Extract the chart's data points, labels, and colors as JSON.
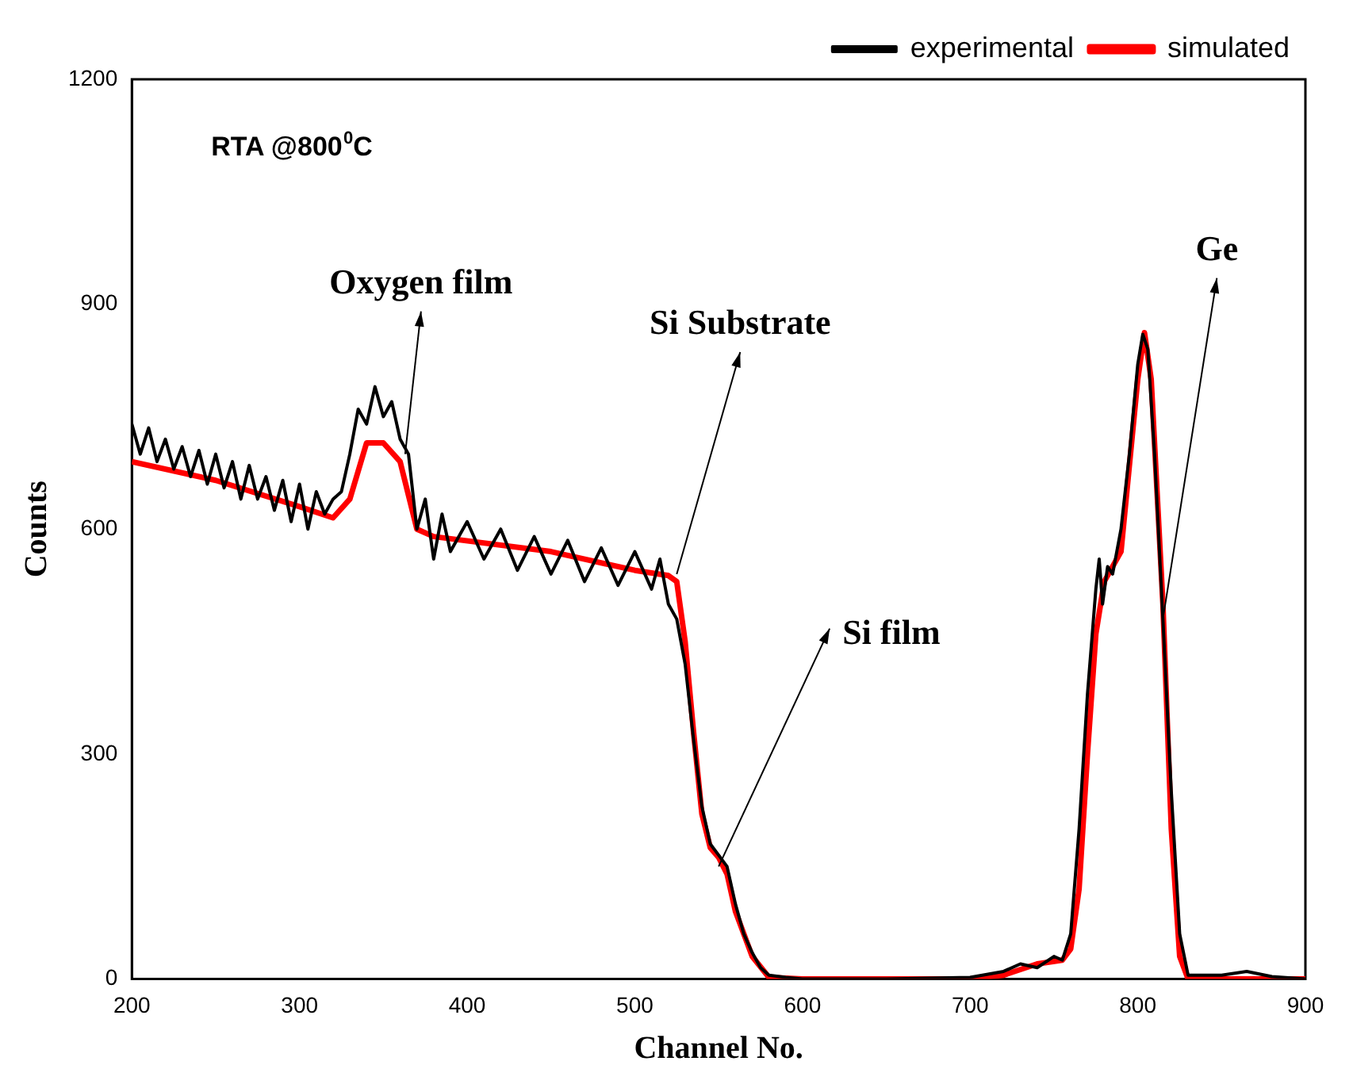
{
  "chart_data": {
    "type": "line",
    "xlabel": "Channel No.",
    "ylabel": "Counts",
    "xlim": [
      200,
      900
    ],
    "ylim": [
      0,
      1200
    ],
    "xticks": [
      200,
      300,
      400,
      500,
      600,
      700,
      800,
      900
    ],
    "yticks": [
      0,
      300,
      600,
      900,
      1200
    ],
    "grid": false,
    "legend": "top right",
    "marker": "none",
    "line_style": "solid",
    "annotations": [
      "RTA @800$^{0}$C",
      {
        "text": "Oxygen film",
        "x": 363,
        "y": 700
      },
      {
        "text": "Si Substrate",
        "x": 525,
        "y": 540
      },
      {
        "text": "Si film",
        "x": 550,
        "y": 150
      },
      {
        "text": "Ge",
        "x": 815,
        "y": 480
      }
    ],
    "series": [
      {
        "name": "experimental",
        "color": "#000000",
        "x": [
          200,
          205,
          210,
          215,
          220,
          225,
          230,
          235,
          240,
          245,
          250,
          255,
          260,
          265,
          270,
          275,
          280,
          285,
          290,
          295,
          300,
          305,
          310,
          315,
          320,
          325,
          330,
          335,
          340,
          345,
          350,
          355,
          360,
          365,
          370,
          375,
          380,
          385,
          390,
          400,
          410,
          420,
          430,
          440,
          450,
          460,
          470,
          480,
          490,
          500,
          510,
          515,
          520,
          525,
          530,
          535,
          540,
          545,
          550,
          555,
          560,
          565,
          570,
          575,
          580,
          590,
          600,
          650,
          700,
          720,
          730,
          740,
          750,
          755,
          760,
          765,
          770,
          775,
          777,
          779,
          782,
          785,
          790,
          795,
          800,
          803,
          806,
          810,
          815,
          820,
          825,
          830,
          850,
          865,
          880,
          900
        ],
        "values": [
          740,
          700,
          735,
          690,
          720,
          680,
          710,
          670,
          705,
          660,
          700,
          655,
          690,
          640,
          685,
          640,
          670,
          625,
          665,
          610,
          660,
          600,
          650,
          620,
          640,
          650,
          700,
          760,
          740,
          790,
          750,
          770,
          720,
          700,
          600,
          640,
          560,
          620,
          570,
          610,
          560,
          600,
          545,
          590,
          540,
          585,
          530,
          575,
          525,
          570,
          520,
          560,
          500,
          480,
          420,
          320,
          230,
          180,
          165,
          150,
          100,
          60,
          35,
          15,
          5,
          2,
          0,
          0,
          2,
          10,
          20,
          15,
          30,
          25,
          60,
          200,
          380,
          520,
          560,
          500,
          550,
          540,
          600,
          700,
          820,
          860,
          840,
          700,
          480,
          250,
          60,
          5,
          5,
          10,
          3,
          0
        ]
      },
      {
        "name": "simulated",
        "color": "#ff0000",
        "x": [
          200,
          250,
          300,
          320,
          330,
          340,
          350,
          360,
          370,
          380,
          450,
          500,
          520,
          525,
          530,
          535,
          540,
          545,
          550,
          555,
          560,
          570,
          580,
          600,
          700,
          720,
          740,
          755,
          760,
          765,
          770,
          775,
          780,
          790,
          800,
          804,
          808,
          815,
          820,
          825,
          830,
          900
        ],
        "values": [
          690,
          665,
          630,
          615,
          640,
          715,
          715,
          690,
          600,
          590,
          570,
          545,
          538,
          530,
          450,
          330,
          220,
          175,
          162,
          140,
          90,
          30,
          2,
          0,
          0,
          5,
          20,
          25,
          40,
          120,
          300,
          460,
          530,
          570,
          800,
          862,
          800,
          500,
          200,
          30,
          0,
          0
        ]
      }
    ]
  }
}
